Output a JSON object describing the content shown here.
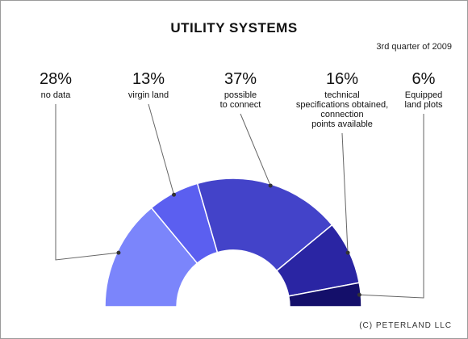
{
  "title": "UTILITY SYSTEMS",
  "subtitle": "3rd quarter of 2009",
  "copyright": "(C) PETERLAND LLC",
  "chart_data": {
    "type": "pie",
    "variant": "half-donut",
    "title": "UTILITY SYSTEMS",
    "subtitle": "3rd quarter of 2009",
    "slices": [
      {
        "label": "no data",
        "label_lines": [
          "no data"
        ],
        "value": 28,
        "value_label": "28%",
        "color": "#7b85fb"
      },
      {
        "label": "virgin land",
        "label_lines": [
          "virgin land"
        ],
        "value": 13,
        "value_label": "13%",
        "color": "#5b5ff0"
      },
      {
        "label": "possible to connect",
        "label_lines": [
          "possible",
          "to connect"
        ],
        "value": 37,
        "value_label": "37%",
        "color": "#4343c9"
      },
      {
        "label": "technical specifications obtained, connection points available",
        "label_lines": [
          "technical",
          "specifications obtained,",
          "connection",
          "points available"
        ],
        "value": 16,
        "value_label": "16%",
        "color": "#2a25a3"
      },
      {
        "label": "Equipped land plots",
        "label_lines": [
          "Equipped",
          "land plots"
        ],
        "value": 6,
        "value_label": "6%",
        "color": "#140f6a"
      }
    ]
  }
}
